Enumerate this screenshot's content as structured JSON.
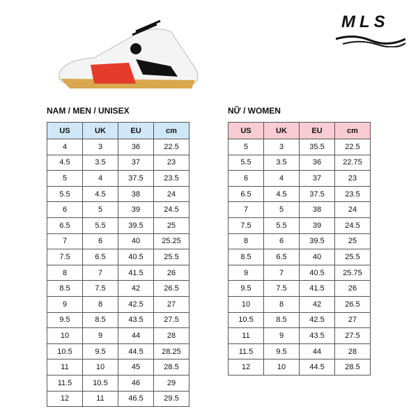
{
  "logo": "MLS",
  "men": {
    "title": "NAM / MEN / UNISEX",
    "header": [
      "US",
      "UK",
      "EU",
      "cm"
    ],
    "rows": [
      [
        "4",
        "3",
        "36",
        "22.5"
      ],
      [
        "4.5",
        "3.5",
        "37",
        "23"
      ],
      [
        "5",
        "4",
        "37.5",
        "23.5"
      ],
      [
        "5.5",
        "4.5",
        "38",
        "24"
      ],
      [
        "6",
        "5",
        "39",
        "24.5"
      ],
      [
        "6.5",
        "5.5",
        "39.5",
        "25"
      ],
      [
        "7",
        "6",
        "40",
        "25.25"
      ],
      [
        "7.5",
        "6.5",
        "40.5",
        "25.5"
      ],
      [
        "8",
        "7",
        "41.5",
        "26"
      ],
      [
        "8.5",
        "7.5",
        "42",
        "26.5"
      ],
      [
        "9",
        "8",
        "42.5",
        "27"
      ],
      [
        "9.5",
        "8.5",
        "43.5",
        "27.5"
      ],
      [
        "10",
        "9",
        "44",
        "28"
      ],
      [
        "10.5",
        "9.5",
        "44.5",
        "28.25"
      ],
      [
        "11",
        "10",
        "45",
        "28.5"
      ],
      [
        "11.5",
        "10.5",
        "46",
        "29"
      ],
      [
        "12",
        "11",
        "46.5",
        "29.5"
      ]
    ]
  },
  "women": {
    "title": "NỮ / WOMEN",
    "header": [
      "US",
      "UK",
      "EU",
      "cm"
    ],
    "rows": [
      [
        "5",
        "3",
        "35.5",
        "22.5"
      ],
      [
        "5.5",
        "3.5",
        "36",
        "22.75"
      ],
      [
        "6",
        "4",
        "37",
        "23"
      ],
      [
        "6.5",
        "4.5",
        "37.5",
        "23.5"
      ],
      [
        "7",
        "5",
        "38",
        "24"
      ],
      [
        "7.5",
        "5.5",
        "39",
        "24.5"
      ],
      [
        "8",
        "6",
        "39.5",
        "25"
      ],
      [
        "8.5",
        "6.5",
        "40",
        "25.5"
      ],
      [
        "9",
        "7",
        "40.5",
        "25.75"
      ],
      [
        "9.5",
        "7.5",
        "41.5",
        "26"
      ],
      [
        "10",
        "8",
        "42",
        "26.5"
      ],
      [
        "10.5",
        "8.5",
        "42.5",
        "27"
      ],
      [
        "11",
        "9",
        "43.5",
        "27.5"
      ],
      [
        "11.5",
        "9.5",
        "44",
        "28"
      ],
      [
        "12",
        "10",
        "44.5",
        "28.5"
      ]
    ]
  }
}
